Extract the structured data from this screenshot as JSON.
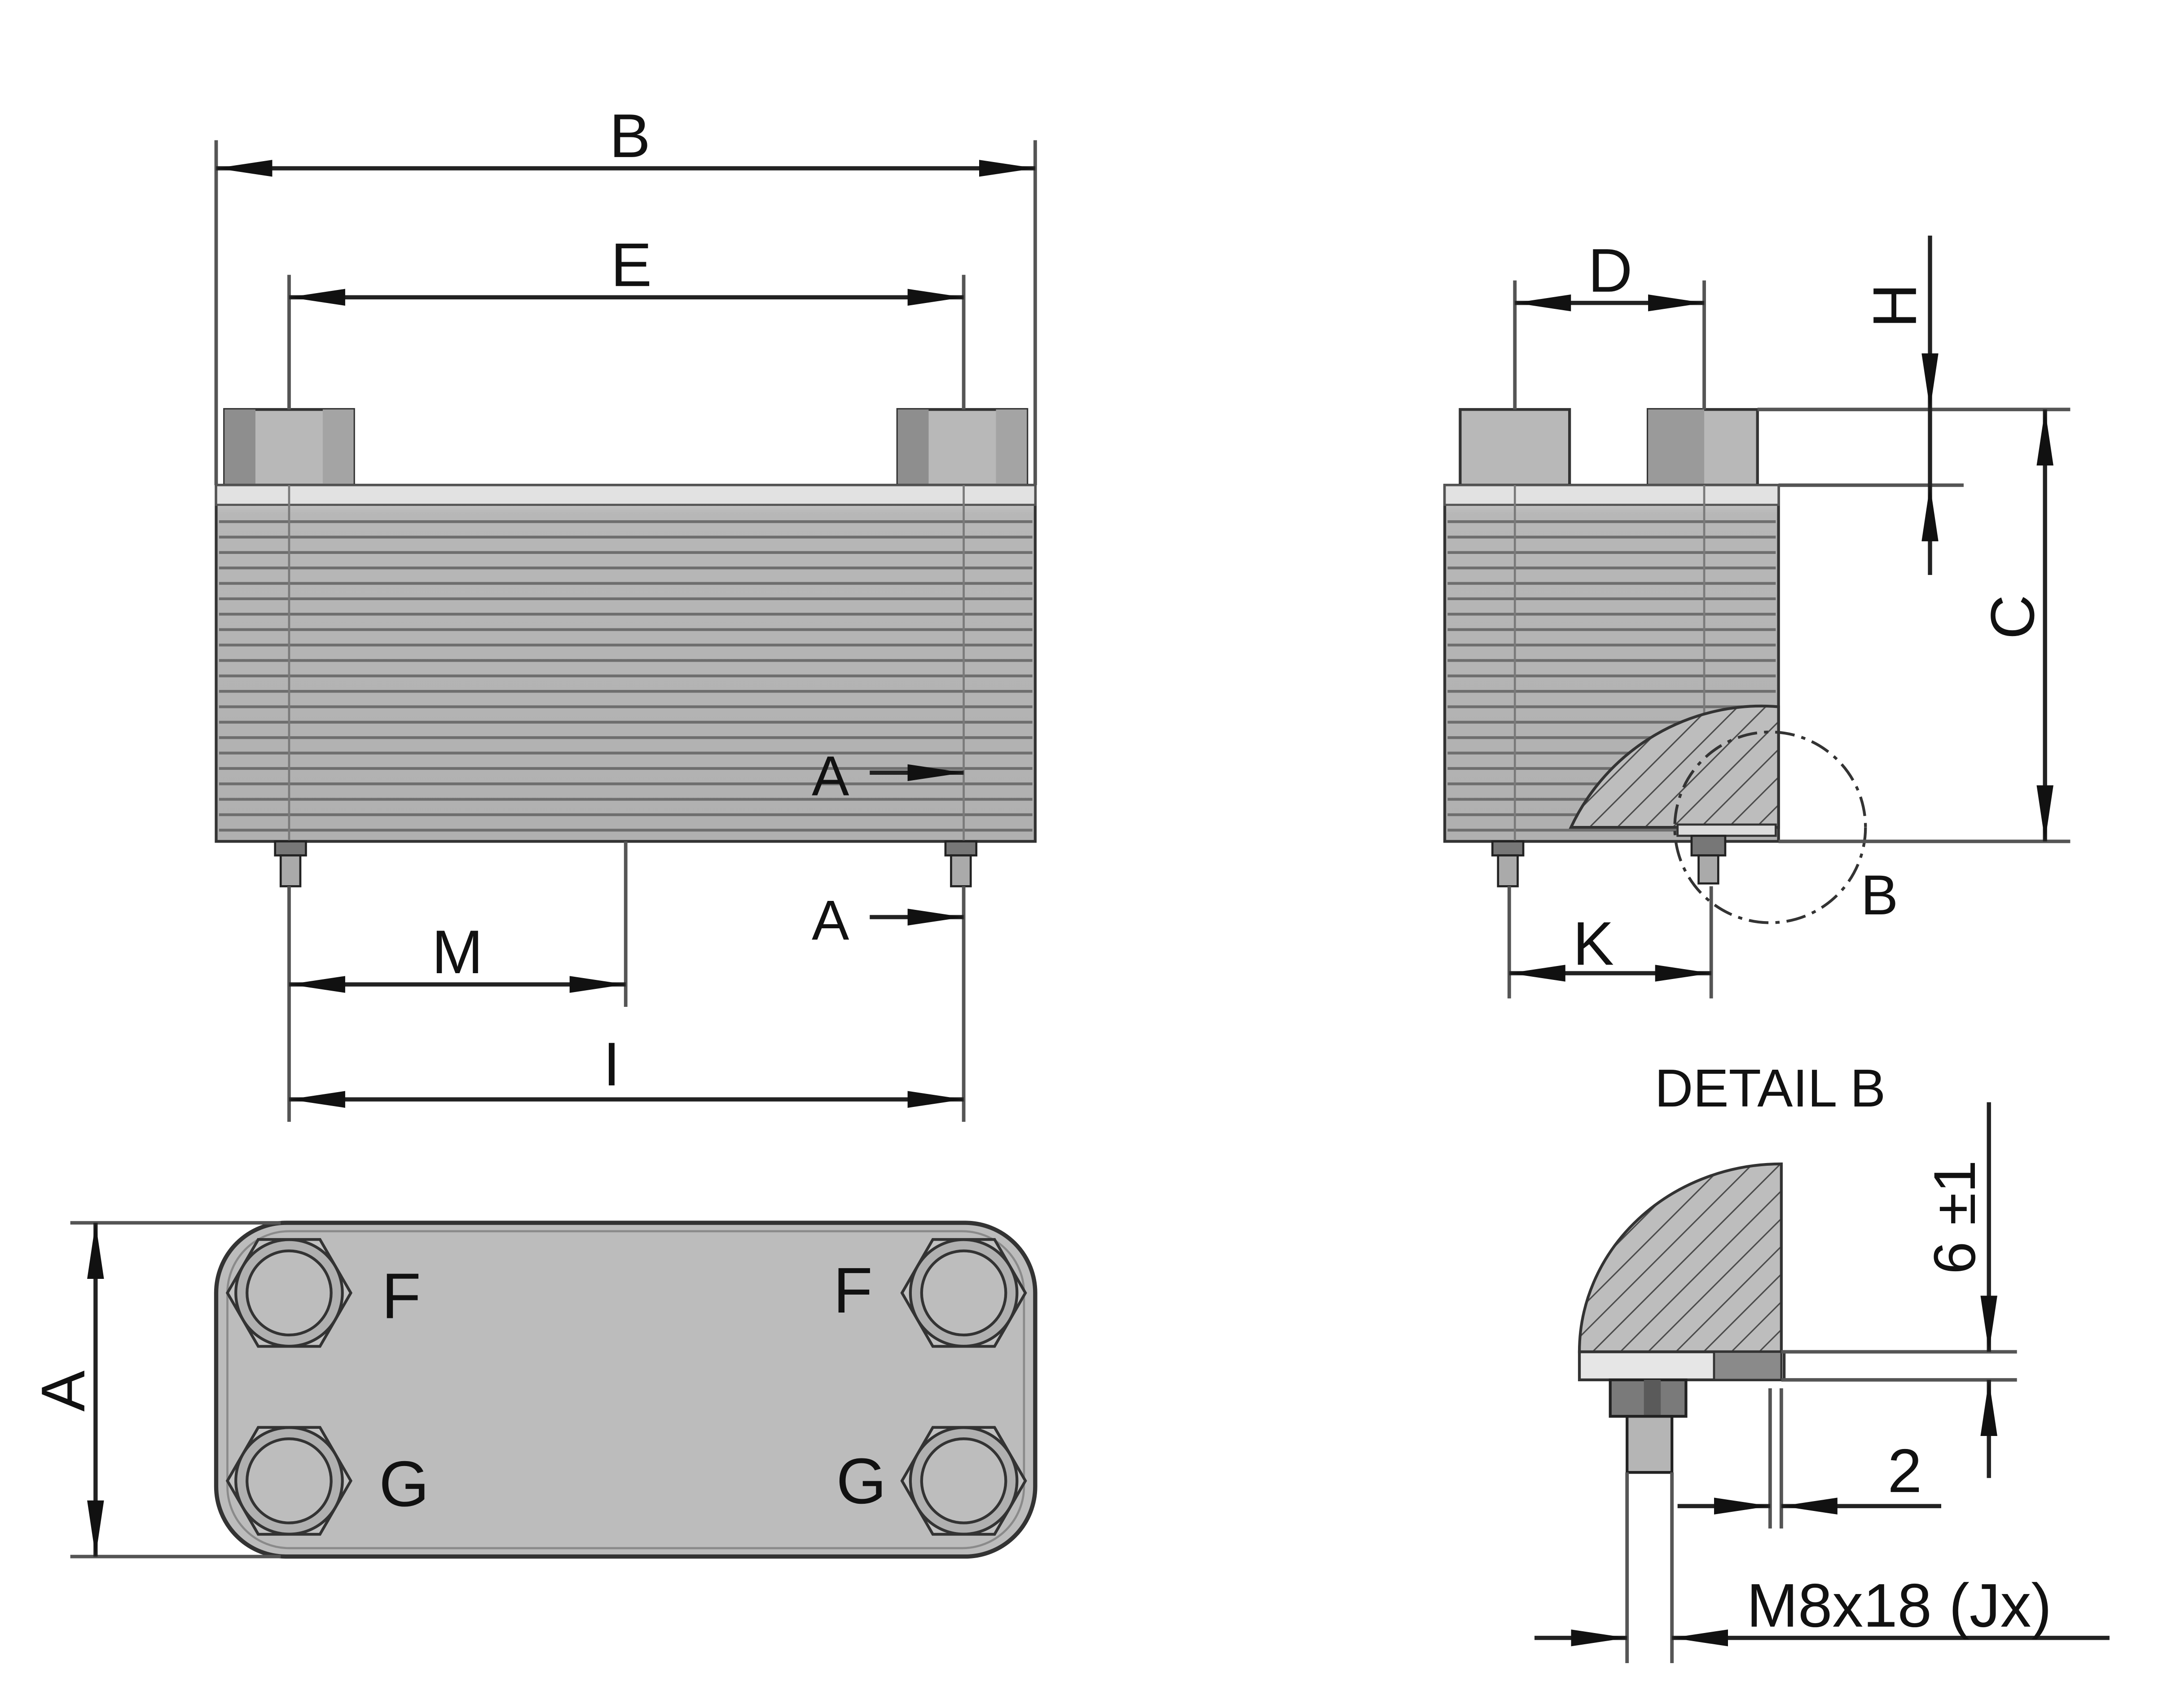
{
  "labels": {
    "B": "B",
    "E": "E",
    "A": "A",
    "M": "M",
    "I": "I",
    "D": "D",
    "H": "H",
    "C": "C",
    "K": "K",
    "F": "F",
    "G": "G",
    "detail_title": "DETAIL B",
    "tolerance": "6 ±1",
    "gap": "2",
    "bolt": "M8x18 (Jx)"
  },
  "colors": {
    "body": "#b9b9b9",
    "body_dark": "#8c8c8c",
    "top_plate": "#d6d6d6",
    "plate_line": "#6e6e6e",
    "outline": "#333333",
    "hatch": "#4a4a4a",
    "leader": "#222222"
  }
}
